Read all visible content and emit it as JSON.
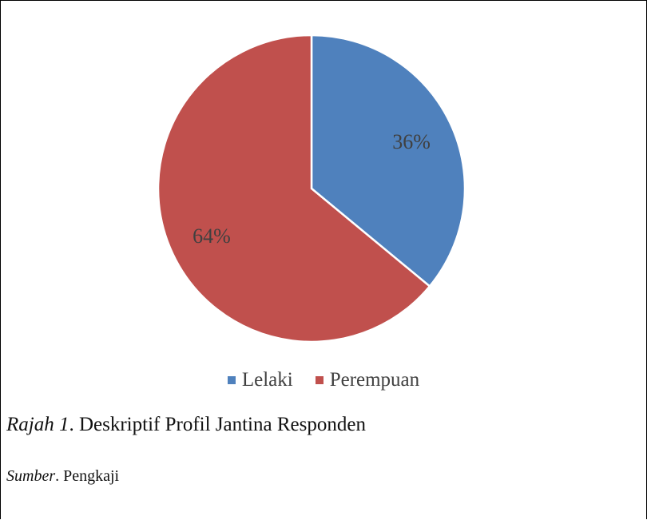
{
  "chart_data": {
    "type": "pie",
    "categories": [
      "Lelaki",
      "Perempuan"
    ],
    "values": [
      36,
      64
    ],
    "labels": [
      "36%",
      "64%"
    ],
    "colors": [
      "#4F81BD",
      "#C0504D"
    ],
    "legend": "bottom",
    "title": ""
  },
  "caption": {
    "prefix": "Rajah 1",
    "text": ". Deskriptif Profil Jantina Responden"
  },
  "source": {
    "prefix": "Sumber",
    "text": ". Pengkaji"
  }
}
